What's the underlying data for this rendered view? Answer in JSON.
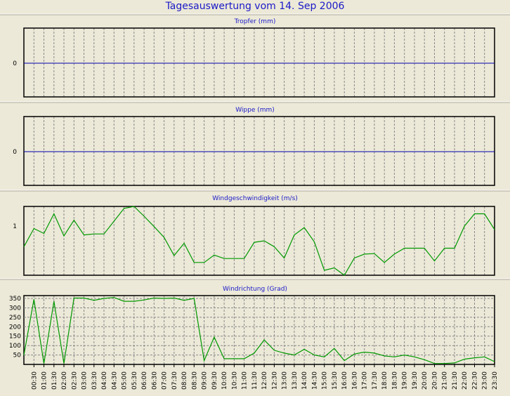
{
  "page_title": "Tagesauswertung vom 14. Sep 2006",
  "colors": {
    "background": "#ECE9D8",
    "title": "#1A1AC8",
    "rain_line": "#0000AA",
    "wind_line": "#009900",
    "grid": "#888888",
    "frame": "#000000"
  },
  "chart_data": [
    {
      "type": "line",
      "title": "Tropfer (mm)",
      "yticks": [
        "0"
      ],
      "ylim": [
        -1,
        1
      ],
      "grid": true,
      "series": [
        {
          "values": [
            0,
            0
          ]
        }
      ]
    },
    {
      "type": "line",
      "title": "Wippe (mm)",
      "yticks": [
        "0"
      ],
      "ylim": [
        -1,
        1
      ],
      "grid": true,
      "series": [
        {
          "values": [
            0,
            0
          ]
        }
      ]
    },
    {
      "type": "line",
      "title": "Windgeschwindigkeit (m/s)",
      "yticks": [
        "1"
      ],
      "ylim": [
        0,
        1.4
      ],
      "grid": true,
      "series": [
        {
          "values": [
            0.58,
            0.95,
            0.85,
            1.25,
            0.8,
            1.12,
            0.82,
            0.84,
            0.84,
            1.1,
            1.36,
            1.4,
            1.2,
            0.99,
            0.77,
            0.4,
            0.65,
            0.26,
            0.26,
            0.41,
            0.34,
            0.34,
            0.34,
            0.67,
            0.7,
            0.58,
            0.35,
            0.82,
            0.97,
            0.68,
            0.1,
            0.15,
            0.0,
            0.35,
            0.43,
            0.44,
            0.26,
            0.43,
            0.55,
            0.55,
            0.55,
            0.29,
            0.55,
            0.55,
            1.0,
            1.25,
            1.25,
            0.93
          ]
        }
      ]
    },
    {
      "type": "line",
      "title": "Windrichtung (Grad)",
      "yticks": [
        "50",
        "100",
        "150",
        "200",
        "250",
        "300",
        "350"
      ],
      "ylim": [
        0,
        365
      ],
      "grid": true,
      "xlabels": [
        "00:30",
        "01:00",
        "01:30",
        "02:00",
        "02:30",
        "03:00",
        "03:30",
        "04:00",
        "04:30",
        "05:00",
        "05:30",
        "06:00",
        "06:30",
        "07:00",
        "07:30",
        "08:00",
        "08:30",
        "09:00",
        "09:30",
        "10:00",
        "10:30",
        "11:00",
        "11:30",
        "12:00",
        "12:30",
        "13:00",
        "13:30",
        "14:00",
        "14:30",
        "15:00",
        "15:30",
        "16:00",
        "16:30",
        "17:00",
        "17:30",
        "18:00",
        "18:30",
        "19:00",
        "19:30",
        "20:00",
        "20:30",
        "21:00",
        "21:30",
        "22:00",
        "22:30",
        "23:00",
        "23:30"
      ],
      "series": [
        {
          "values": [
            50,
            345,
            5,
            335,
            5,
            352,
            352,
            340,
            350,
            355,
            335,
            335,
            342,
            352,
            350,
            352,
            340,
            350,
            20,
            145,
            30,
            30,
            30,
            60,
            130,
            75,
            60,
            50,
            80,
            50,
            40,
            85,
            20,
            55,
            65,
            60,
            45,
            40,
            50,
            40,
            25,
            5,
            5,
            8,
            28,
            35,
            40,
            15
          ]
        }
      ]
    }
  ]
}
